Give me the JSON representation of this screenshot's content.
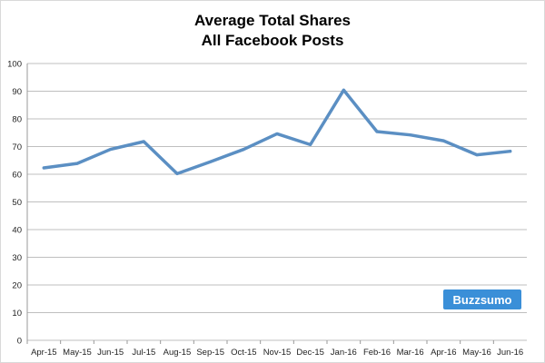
{
  "chart_data": {
    "type": "line",
    "title": "Average Total Shares",
    "subtitle": "All Facebook Posts",
    "xlabel": "",
    "ylabel": "",
    "categories": [
      "Apr-15",
      "May-15",
      "Jun-15",
      "Jul-15",
      "Aug-15",
      "Sep-15",
      "Oct-15",
      "Nov-15",
      "Dec-15",
      "Jan-16",
      "Feb-16",
      "Mar-16",
      "Apr-16",
      "May-16",
      "Jun-16"
    ],
    "series": [
      {
        "values": [
          62.3,
          63.9,
          69.0,
          71.8,
          60.2,
          64.5,
          69.0,
          74.6,
          70.7,
          90.4,
          75.4,
          74.2,
          72.1,
          67.0,
          68.3
        ]
      }
    ],
    "ylim": [
      0,
      100
    ],
    "yticks": [
      0,
      10,
      20,
      30,
      40,
      50,
      60,
      70,
      80,
      90,
      100
    ],
    "grid": true,
    "legend": "none",
    "colors": {
      "line": "#5b8fc3",
      "grid": "#bfbfbf"
    }
  },
  "watermark": {
    "text": "Buzzsumo",
    "color": "#3a8fd8"
  }
}
